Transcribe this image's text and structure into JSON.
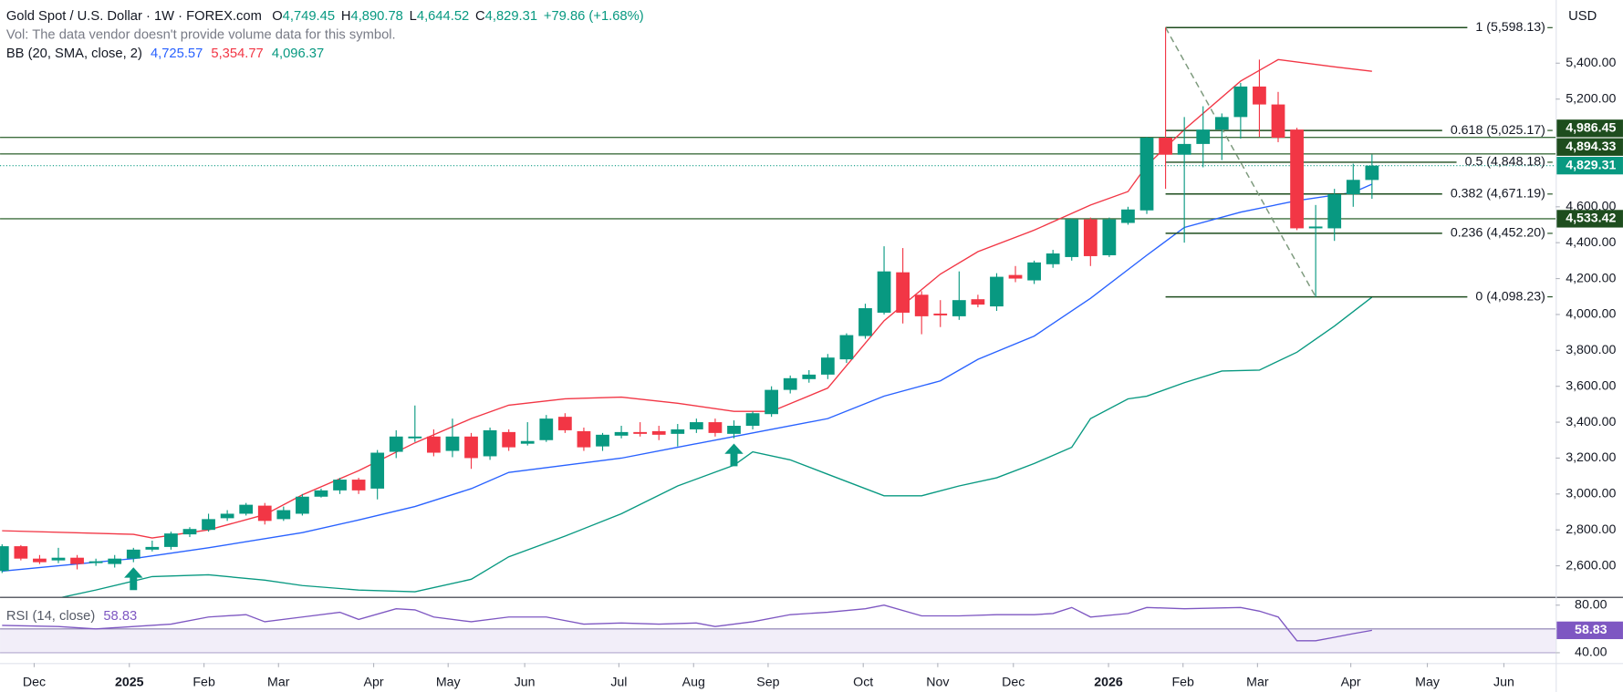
{
  "chart_data": {
    "type": "candlestick",
    "title": "Gold Spot / U.S. Dollar · 1W · FOREX.com",
    "ohlc": [
      {
        "label": "O",
        "value": "4,749.45"
      },
      {
        "label": "H",
        "value": "4,890.78"
      },
      {
        "label": "L",
        "value": "4,644.52"
      },
      {
        "label": "C",
        "value": "4,829.31"
      }
    ],
    "change": "+79.86 (+1.68%)",
    "note": "Vol: The data vendor doesn't provide volume data for this symbol.",
    "currency": "USD",
    "up_color": "#089981",
    "down_color": "#f23645",
    "x": [
      0,
      1,
      2,
      3,
      4,
      5,
      6,
      7,
      8,
      9,
      10,
      11,
      12,
      13,
      14,
      15,
      16,
      17,
      18,
      19,
      20,
      21,
      22,
      23,
      24,
      25,
      26,
      27,
      28,
      29,
      30,
      31,
      32,
      33,
      34,
      35,
      36,
      37,
      38,
      39,
      40,
      41,
      42,
      43,
      44,
      45,
      46,
      47,
      48,
      49,
      50,
      51,
      52,
      53,
      54,
      55,
      56,
      57,
      58,
      59,
      60,
      61,
      62,
      63,
      64,
      65,
      66,
      67,
      68,
      69,
      70,
      71,
      72,
      73
    ],
    "open": [
      2571,
      2709,
      2640,
      2630,
      2645,
      2615,
      2610,
      2640,
      2690,
      2705,
      2775,
      2800,
      2865,
      2890,
      2935,
      2860,
      2890,
      2985,
      3020,
      3080,
      3030,
      3235,
      3310,
      3320,
      3240,
      3320,
      3210,
      3345,
      3280,
      3300,
      3430,
      3350,
      3265,
      3325,
      3345,
      3350,
      3335,
      3360,
      3400,
      3335,
      3380,
      3445,
      3580,
      3640,
      3665,
      3750,
      3880,
      4010,
      4235,
      4110,
      4005,
      3990,
      4085,
      4045,
      4220,
      4190,
      4280,
      4320,
      4530,
      4330,
      4510,
      4580,
      4985,
      4890,
      4950,
      5030,
      5100,
      5270,
      5170,
      5030,
      4480,
      4480,
      4670,
      4749.45
    ],
    "high": [
      2720,
      2715,
      2660,
      2700,
      2660,
      2640,
      2660,
      2700,
      2740,
      2790,
      2815,
      2890,
      2910,
      2950,
      2950,
      2930,
      3000,
      3030,
      3090,
      3090,
      3245,
      3355,
      3493,
      3360,
      3420,
      3340,
      3370,
      3360,
      3400,
      3440,
      3450,
      3370,
      3340,
      3380,
      3400,
      3380,
      3390,
      3420,
      3420,
      3410,
      3460,
      3600,
      3660,
      3690,
      3780,
      3895,
      4060,
      4380,
      4370,
      4130,
      4080,
      4240,
      4110,
      4230,
      4270,
      4300,
      4360,
      4535,
      4540,
      4540,
      4600,
      4990,
      5598.13,
      5100,
      5160,
      5120,
      5290,
      5420,
      5240,
      5040,
      4610,
      4700,
      4840,
      4890.78
    ],
    "low": [
      2560,
      2630,
      2610,
      2615,
      2580,
      2600,
      2590,
      2620,
      2680,
      2690,
      2760,
      2790,
      2850,
      2880,
      2830,
      2850,
      2880,
      2980,
      3000,
      3000,
      2970,
      3200,
      3290,
      3210,
      3205,
      3140,
      3190,
      3240,
      3270,
      3290,
      3340,
      3240,
      3240,
      3310,
      3320,
      3300,
      3265,
      3340,
      3320,
      3310,
      3360,
      3430,
      3560,
      3620,
      3640,
      3730,
      3865,
      4000,
      3950,
      3890,
      3930,
      3970,
      4040,
      4020,
      4180,
      4170,
      4260,
      4300,
      4270,
      4320,
      4500,
      4560,
      4700,
      4400,
      4820,
      4860,
      4980,
      4990,
      4960,
      4470,
      4098.23,
      4410,
      4600,
      4644.52
    ],
    "close": [
      2709,
      2640,
      2620,
      2645,
      2610,
      2625,
      2640,
      2690,
      2705,
      2780,
      2805,
      2860,
      2890,
      2940,
      2850,
      2910,
      2985,
      3020,
      3080,
      3020,
      3230,
      3320,
      3320,
      3230,
      3320,
      3200,
      3355,
      3260,
      3295,
      3420,
      3355,
      3260,
      3330,
      3345,
      3335,
      3330,
      3360,
      3400,
      3340,
      3380,
      3450,
      3580,
      3645,
      3665,
      3760,
      3885,
      4035,
      4240,
      4010,
      3990,
      3995,
      4080,
      4055,
      4210,
      4200,
      4290,
      4340,
      4530,
      4325,
      4530,
      4585,
      4985,
      4890,
      4950,
      5030,
      5100,
      5270,
      5170,
      4985,
      4480,
      4490,
      4670,
      4750,
      4829.31
    ],
    "xlim": [
      -0.11,
      82.79
    ],
    "xticks": [
      {
        "value": 1.71,
        "label": "Dec"
      },
      {
        "value": 6.78,
        "label": "2025"
      },
      {
        "value": 10.76,
        "label": "Feb"
      },
      {
        "value": 14.73,
        "label": "Mar"
      },
      {
        "value": 19.8,
        "label": "Apr"
      },
      {
        "value": 23.77,
        "label": "May"
      },
      {
        "value": 27.85,
        "label": "Jun"
      },
      {
        "value": 32.87,
        "label": "Jul"
      },
      {
        "value": 36.85,
        "label": "Aug"
      },
      {
        "value": 40.82,
        "label": "Sep"
      },
      {
        "value": 45.89,
        "label": "Oct"
      },
      {
        "value": 49.86,
        "label": "Nov"
      },
      {
        "value": 53.89,
        "label": "Dec"
      },
      {
        "value": 58.96,
        "label": "2026"
      },
      {
        "value": 62.93,
        "label": "Feb"
      },
      {
        "value": 66.9,
        "label": "Mar"
      },
      {
        "value": 71.87,
        "label": "Apr"
      },
      {
        "value": 75.95,
        "label": "May"
      },
      {
        "value": 80.03,
        "label": "Jun"
      }
    ],
    "ylim": [
      2427,
      5752
    ],
    "yticks": [
      {
        "value": 5400,
        "label": "5,400.00"
      },
      {
        "value": 5200,
        "label": "5,200.00"
      },
      {
        "value": 4600,
        "label": "4,600.00"
      },
      {
        "value": 4400,
        "label": "4,400.00"
      },
      {
        "value": 4200,
        "label": "4,200.00"
      },
      {
        "value": 4000,
        "label": "4,000.00"
      },
      {
        "value": 3800,
        "label": "3,800.00"
      },
      {
        "value": 3600,
        "label": "3,600.00"
      },
      {
        "value": 3400,
        "label": "3,400.00"
      },
      {
        "value": 3200,
        "label": "3,200.00"
      },
      {
        "value": 3000,
        "label": "3,000.00"
      },
      {
        "value": 2800,
        "label": "2,800.00"
      },
      {
        "value": 2600,
        "label": "2,600.00"
      }
    ],
    "bb": {
      "label": "BB (20, SMA, close, 2)",
      "series": [
        {
          "color": "#2962ff",
          "value_label": "4,725.57",
          "x": [
            0,
            7,
            11,
            16,
            19,
            22,
            25,
            27,
            30,
            33,
            36,
            39,
            41,
            44,
            47,
            50,
            52,
            55,
            58,
            61,
            63,
            66,
            69,
            72,
            73
          ],
          "values": [
            2570,
            2640,
            2700,
            2785,
            2855,
            2930,
            3030,
            3120,
            3160,
            3200,
            3260,
            3320,
            3360,
            3420,
            3545,
            3630,
            3750,
            3880,
            4090,
            4330,
            4485,
            4570,
            4634,
            4680,
            4725.57
          ]
        },
        {
          "color": "#f23645",
          "value_label": "5,354.77",
          "x": [
            0,
            7,
            8,
            11,
            14,
            16,
            19,
            22,
            25,
            27,
            30,
            33,
            36,
            39,
            41,
            44,
            47,
            50,
            52,
            55,
            58,
            60,
            61,
            63,
            66,
            68,
            71,
            73
          ],
          "values": [
            2795,
            2775,
            2755,
            2800,
            2885,
            2995,
            3130,
            3285,
            3420,
            3495,
            3530,
            3540,
            3505,
            3460,
            3460,
            3590,
            3965,
            4225,
            4350,
            4470,
            4610,
            4685,
            4830,
            5030,
            5300,
            5420,
            5380,
            5354.77
          ]
        },
        {
          "color": "#089981",
          "value_label": "4,096.37",
          "x": [
            3,
            5,
            8,
            11,
            14,
            16,
            19,
            22,
            25,
            27,
            30,
            33,
            36,
            39,
            40,
            42,
            44,
            47,
            49,
            51,
            53,
            55,
            57,
            58,
            60,
            61,
            63,
            65,
            67,
            69,
            71,
            73
          ],
          "values": [
            2420,
            2465,
            2540,
            2550,
            2520,
            2490,
            2465,
            2455,
            2525,
            2650,
            2765,
            2890,
            3045,
            3160,
            3235,
            3190,
            3110,
            2990,
            2990,
            3045,
            3090,
            3170,
            3260,
            3420,
            3530,
            3545,
            3620,
            3685,
            3690,
            3790,
            3935,
            4096.37
          ]
        }
      ]
    },
    "hlines": [
      {
        "value": 4986.45,
        "label": "4,986.45"
      },
      {
        "value": 4894.33,
        "label": "4,894.33"
      },
      {
        "value": 4533.42,
        "label": "4,533.42"
      }
    ],
    "last_price": {
      "value": 4829.31,
      "label": "4,829.31"
    },
    "fib": {
      "x": [
        62,
        70
      ],
      "levels": [
        {
          "value": 5598.13,
          "label": "1 (5,598.13)"
        },
        {
          "value": 5025.17,
          "label": "0.618 (5,025.17)"
        },
        {
          "value": 4848.18,
          "label": "0.5 (4,848.18)"
        },
        {
          "value": 4671.19,
          "label": "0.382 (4,671.19)"
        },
        {
          "value": 4452.2,
          "label": "0.236 (4,452.20)"
        },
        {
          "value": 4098.23,
          "label": "0 (4,098.23)"
        }
      ]
    },
    "signals": [
      7,
      39
    ],
    "rsi": {
      "label": "RSI (14, close)",
      "color": "#7e57c2",
      "value_label": "58.83",
      "x": [
        0,
        3,
        5,
        7,
        9,
        11,
        13,
        14,
        16,
        18,
        19,
        21,
        22,
        23,
        25,
        27,
        29,
        31,
        33,
        35,
        37,
        38,
        40,
        42,
        44,
        46,
        47,
        49,
        51,
        53,
        55,
        56,
        57,
        58,
        60,
        61,
        63,
        66,
        67,
        68,
        69,
        70,
        71,
        72,
        73
      ],
      "values": [
        63,
        62,
        60,
        62,
        64,
        70,
        72,
        66,
        70,
        74,
        68,
        77,
        76,
        70,
        66,
        70,
        70,
        64,
        65,
        64,
        65,
        62,
        66,
        72,
        74,
        77,
        80,
        71,
        71,
        72,
        72,
        73,
        78,
        70,
        73,
        78,
        77,
        78,
        75,
        70,
        50,
        50,
        53,
        56,
        58.83
      ],
      "ylim": [
        32.2,
        86.1
      ],
      "yticks": [
        {
          "value": 80,
          "label": "80.00"
        },
        {
          "value": 40,
          "label": "40.00"
        }
      ]
    }
  }
}
